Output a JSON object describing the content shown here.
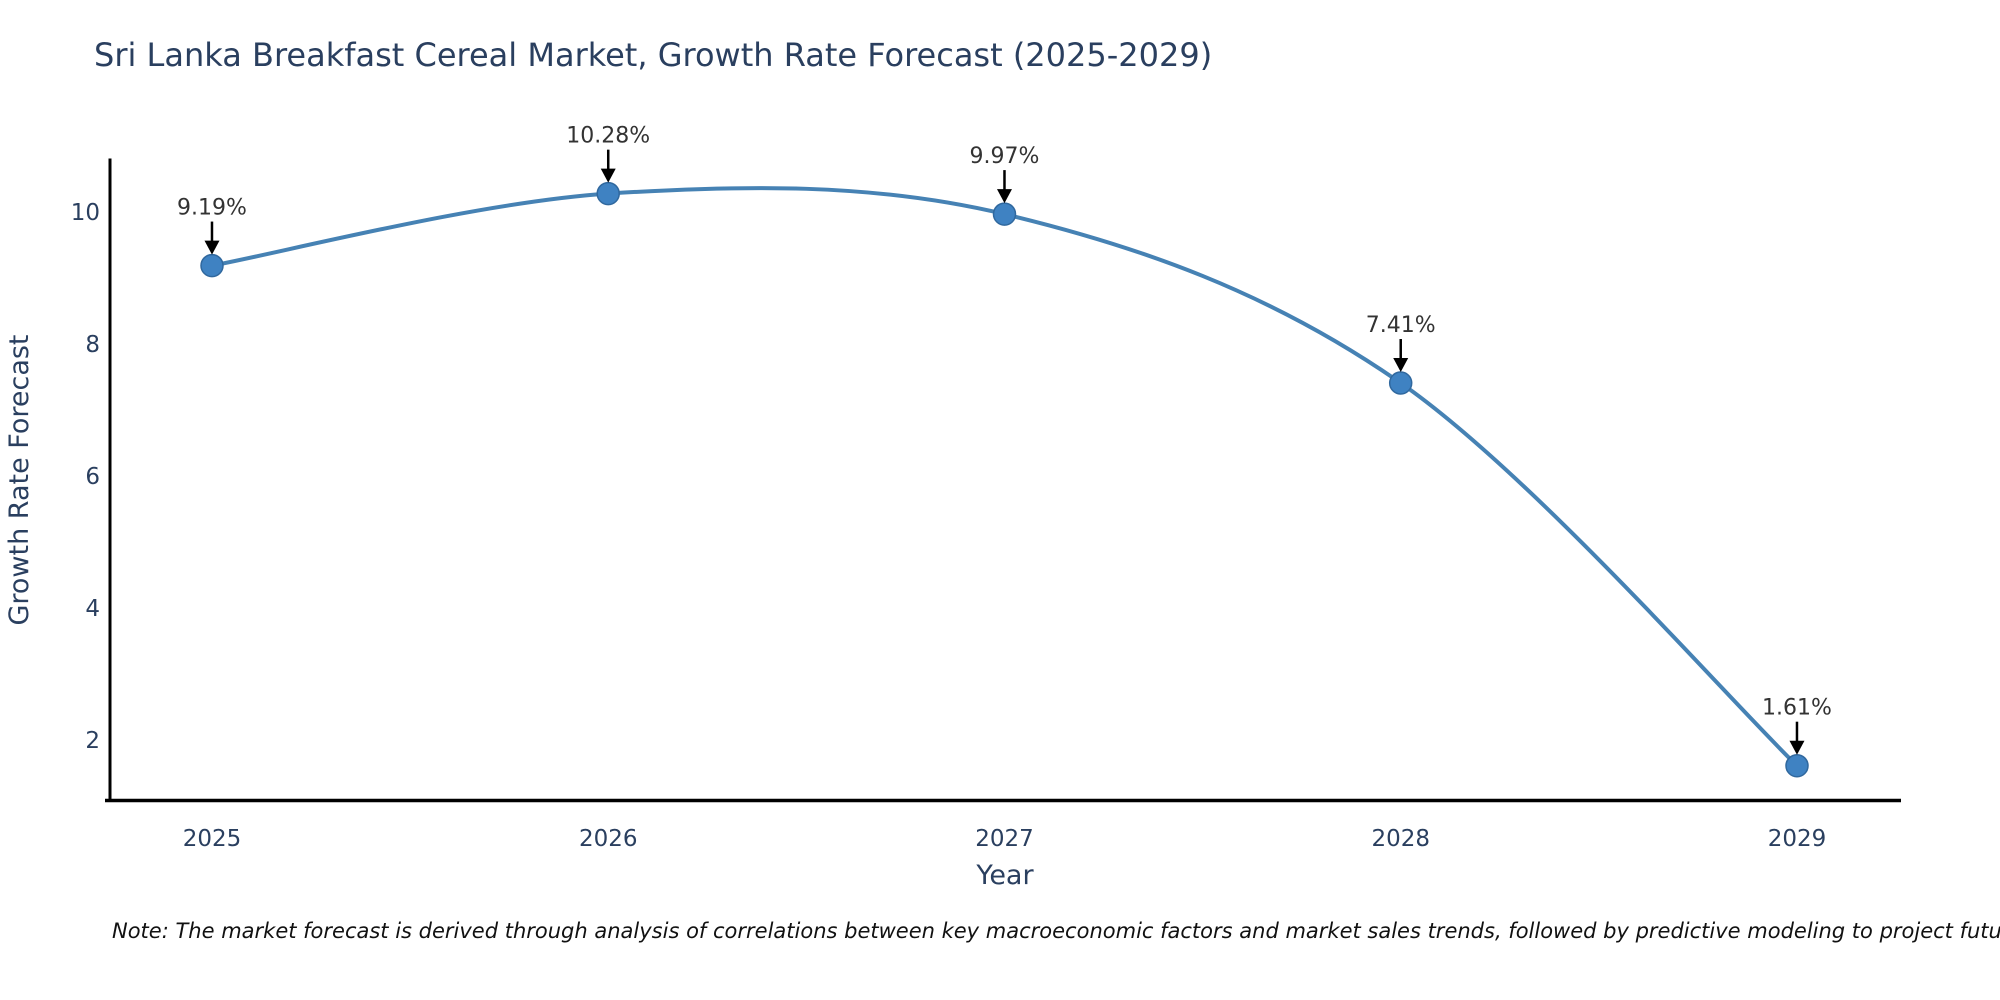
{
  "chart_data": {
    "type": "line",
    "title": "Sri Lanka Breakfast Cereal Market, Growth Rate Forecast (2025-2029)",
    "xlabel": "Year",
    "ylabel": "Growth Rate Forecast",
    "x": [
      2025,
      2026,
      2027,
      2028,
      2029
    ],
    "series": [
      {
        "name": "Growth Rate Forecast",
        "values": [
          9.19,
          10.28,
          9.97,
          7.41,
          1.61
        ]
      }
    ],
    "point_labels": [
      "9.19%",
      "10.28%",
      "9.97%",
      "7.41%",
      "1.61%"
    ],
    "xticks": [
      "2025",
      "2026",
      "2027",
      "2028",
      "2029"
    ],
    "yticks": [
      2,
      4,
      6,
      8,
      10
    ],
    "xlim": [
      2024.73,
      2029.26
    ],
    "ylim": [
      1.09,
      10.79
    ],
    "grid": false,
    "legend": "none",
    "line_style": "smooth-spline",
    "annotation_arrows": "down-to-point",
    "note": "Note: The market forecast is derived through analysis of correlations between key macroeconomic factors and market sales trends, followed by predictive modeling to project future sales",
    "colors": {
      "line": "#4682b4",
      "marker": "#3f82c2",
      "marker_edge": "#30689e",
      "axis": "#000000",
      "text": "#2a3f5f",
      "annotation_text": "#333333",
      "annotation_arrow": "#000000"
    }
  }
}
